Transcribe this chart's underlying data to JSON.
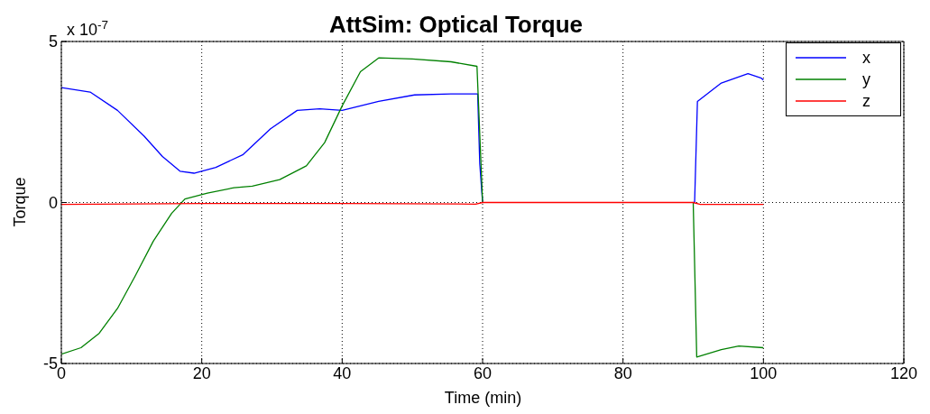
{
  "chart_data": {
    "type": "line",
    "title": "AttSim: Optical Torque",
    "xlabel": "Time (min)",
    "ylabel": "Torque",
    "annotations": [
      "x 10$^{-7}$"
    ],
    "xlim": [
      0,
      120
    ],
    "xticks": [
      0,
      20,
      40,
      60,
      80,
      100,
      120
    ],
    "ylim": [
      -5,
      5
    ],
    "yticks": [
      -5,
      0,
      5
    ],
    "grid": true,
    "legend": "top right",
    "marker": "none",
    "line_style": "solid",
    "series": [
      {
        "name": "x",
        "color": "#0000ff",
        "x": [
          0,
          4.1,
          8,
          11.8,
          14.4,
          16.9,
          18.9,
          22,
          25.9,
          29.8,
          33.6,
          36.8,
          40,
          45.2,
          50.3,
          55.5,
          59.3,
          59.6,
          60,
          null,
          90,
          90.2,
          90.6,
          94,
          97.8,
          99.7,
          100
        ],
        "values": [
          3.57,
          3.43,
          2.86,
          2.06,
          1.43,
          0.97,
          0.91,
          1.09,
          1.49,
          2.29,
          2.86,
          2.91,
          2.86,
          3.14,
          3.34,
          3.37,
          3.37,
          1.2,
          0,
          null,
          0,
          0,
          3.14,
          3.71,
          4,
          3.86,
          3.8
        ]
      },
      {
        "name": "y",
        "color": "#008000",
        "x": [
          0,
          2.8,
          5.4,
          8,
          10.5,
          13.1,
          15.7,
          17.6,
          20.8,
          24.6,
          27.2,
          31.1,
          34.9,
          37.5,
          40,
          42.6,
          45.2,
          50,
          55.5,
          59.2,
          60,
          null,
          90,
          90.5,
          94,
          96.5,
          100
        ],
        "values": [
          -4.71,
          -4.51,
          -4.06,
          -3.29,
          -2.29,
          -1.2,
          -0.34,
          0.11,
          0.29,
          0.46,
          0.51,
          0.71,
          1.14,
          1.86,
          3,
          4.06,
          4.49,
          4.46,
          4.37,
          4.23,
          0,
          null,
          0,
          -4.8,
          -4.57,
          -4.46,
          -4.51
        ]
      },
      {
        "name": "z",
        "color": "#ff0000",
        "x": [
          0,
          20,
          40,
          59,
          60,
          90,
          91,
          100
        ],
        "values": [
          -0.06,
          -0.03,
          -0.03,
          -0.05,
          0,
          0,
          -0.06,
          -0.06
        ]
      }
    ]
  }
}
